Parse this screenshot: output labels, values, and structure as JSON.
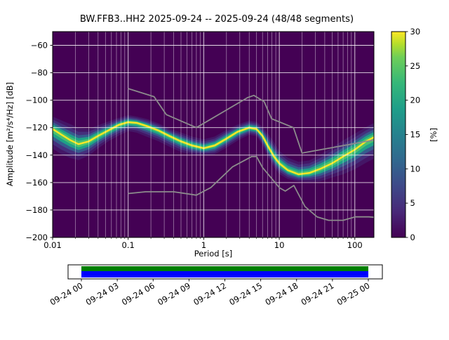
{
  "title": "BW.FFB3..HH2   2025-09-24 -- 2025-09-24  (48/48 segments)",
  "station_id": "BW.FFB3..HH2",
  "date_range": "2025-09-24 -- 2025-09-24",
  "segments": "48/48 segments",
  "axes": {
    "xlabel": "Period [s]",
    "ylabel": "Amplitude [m²/s⁴/Hz] [dB]",
    "xscale": "log",
    "xlim": [
      0.01,
      179
    ],
    "ylim": [
      -200,
      -50
    ],
    "x_ticks": [
      {
        "v": 0.01,
        "label": "0.01"
      },
      {
        "v": 0.1,
        "label": "0.1"
      },
      {
        "v": 1,
        "label": "1"
      },
      {
        "v": 10,
        "label": "10"
      },
      {
        "v": 100,
        "label": "100"
      }
    ],
    "y_ticks": [
      {
        "v": -60,
        "label": "−60"
      },
      {
        "v": -80,
        "label": "−80"
      },
      {
        "v": -100,
        "label": "−100"
      },
      {
        "v": -120,
        "label": "−120"
      },
      {
        "v": -140,
        "label": "−140"
      },
      {
        "v": -160,
        "label": "−160"
      },
      {
        "v": -180,
        "label": "−180"
      },
      {
        "v": -200,
        "label": "−200"
      }
    ]
  },
  "colorbar": {
    "label": "[%]",
    "min": 0,
    "max": 30,
    "colormap": "viridis",
    "ticks": [
      {
        "v": 0,
        "label": "0"
      },
      {
        "v": 5,
        "label": "5"
      },
      {
        "v": 10,
        "label": "10"
      },
      {
        "v": 15,
        "label": "15"
      },
      {
        "v": 20,
        "label": "20"
      },
      {
        "v": 25,
        "label": "25"
      },
      {
        "v": 30,
        "label": "30"
      }
    ],
    "gradient": [
      [
        0.0,
        "#440154"
      ],
      [
        0.125,
        "#482878"
      ],
      [
        0.25,
        "#3e4989"
      ],
      [
        0.375,
        "#31688e"
      ],
      [
        0.5,
        "#26828e"
      ],
      [
        0.625,
        "#1f9e89"
      ],
      [
        0.75,
        "#35b779"
      ],
      [
        0.875,
        "#6ece58"
      ],
      [
        0.94,
        "#b5de2b"
      ],
      [
        1.0,
        "#fde725"
      ]
    ]
  },
  "chart_data": {
    "type": "heatmap",
    "title": "BW.FFB3..HH2   2025-09-24 -- 2025-09-24  (48/48 segments)",
    "xlabel": "Period [s]",
    "ylabel": "Amplitude [m²/s⁴/Hz] [dB]",
    "xscale": "log",
    "xlim": [
      0.01,
      179
    ],
    "ylim": [
      -200,
      -50
    ],
    "x_ticks": [
      0.01,
      0.1,
      1,
      10,
      100
    ],
    "y_ticks": [
      -200,
      -180,
      -160,
      -140,
      -120,
      -100,
      -80,
      -60
    ],
    "grid": true,
    "colorbar": {
      "label": "[%]",
      "range": [
        0,
        30
      ],
      "colormap": "viridis"
    },
    "psd_distribution": {
      "description": "probability density of PSD vs period; points are [period_s, mode_dB, upper_extent_dB, lower_extent_dB]",
      "points": [
        [
          0.01,
          -121,
          -114,
          -132
        ],
        [
          0.013,
          -125,
          -117,
          -136
        ],
        [
          0.017,
          -129,
          -120,
          -139
        ],
        [
          0.022,
          -132,
          -123,
          -141
        ],
        [
          0.03,
          -130,
          -123,
          -138
        ],
        [
          0.04,
          -126,
          -120,
          -133
        ],
        [
          0.055,
          -122,
          -117,
          -128
        ],
        [
          0.075,
          -118,
          -114,
          -124
        ],
        [
          0.1,
          -116,
          -112,
          -121
        ],
        [
          0.13,
          -116.5,
          -113,
          -122
        ],
        [
          0.18,
          -119,
          -115,
          -125
        ],
        [
          0.25,
          -122,
          -118,
          -128
        ],
        [
          0.35,
          -126,
          -122,
          -132
        ],
        [
          0.5,
          -130,
          -125,
          -136
        ],
        [
          0.7,
          -133,
          -128,
          -138
        ],
        [
          1.0,
          -135,
          -130,
          -139
        ],
        [
          1.4,
          -133,
          -128,
          -138
        ],
        [
          2.0,
          -128,
          -123,
          -133
        ],
        [
          2.8,
          -123,
          -119,
          -128
        ],
        [
          4.0,
          -120,
          -116,
          -124
        ],
        [
          5.0,
          -121,
          -117,
          -125
        ],
        [
          6.0,
          -126,
          -121,
          -131
        ],
        [
          7.0,
          -133,
          -126,
          -139
        ],
        [
          8.5,
          -141,
          -133,
          -147
        ],
        [
          10.0,
          -146,
          -139,
          -152
        ],
        [
          13.0,
          -151,
          -144,
          -156
        ],
        [
          18.0,
          -154,
          -147,
          -158
        ],
        [
          25.0,
          -153,
          -146,
          -158
        ],
        [
          35.0,
          -150,
          -142,
          -157
        ],
        [
          50.0,
          -146,
          -137,
          -154
        ],
        [
          70.0,
          -141,
          -132,
          -151
        ],
        [
          100.0,
          -136,
          -127,
          -147
        ],
        [
          140.0,
          -130,
          -122,
          -142
        ],
        [
          179.0,
          -127,
          -119,
          -139
        ]
      ]
    },
    "noise_models": {
      "high": {
        "name": "high-noise-model",
        "points": [
          [
            0.1,
            -91.5
          ],
          [
            0.22,
            -97.4
          ],
          [
            0.32,
            -110.5
          ],
          [
            0.8,
            -120.0
          ],
          [
            3.8,
            -98.1
          ],
          [
            4.6,
            -96.5
          ],
          [
            6.3,
            -101.0
          ],
          [
            7.9,
            -113.5
          ],
          [
            15.4,
            -120.0
          ],
          [
            20,
            -138.5
          ],
          [
            50,
            -134.5
          ],
          [
            100,
            -131.5
          ],
          [
            179,
            -129.0
          ]
        ]
      },
      "low": {
        "name": "low-noise-model",
        "points": [
          [
            0.1,
            -168.0
          ],
          [
            0.17,
            -166.7
          ],
          [
            0.4,
            -166.7
          ],
          [
            0.8,
            -169.2
          ],
          [
            1.24,
            -163.7
          ],
          [
            2.4,
            -148.6
          ],
          [
            4.3,
            -141.1
          ],
          [
            5.0,
            -141.1
          ],
          [
            6.0,
            -149.0
          ],
          [
            10.0,
            -163.7
          ],
          [
            12.0,
            -166.2
          ],
          [
            15.6,
            -162.1
          ],
          [
            21.9,
            -177.5
          ],
          [
            31.6,
            -185.0
          ],
          [
            45.0,
            -187.5
          ],
          [
            70.0,
            -187.5
          ],
          [
            101.0,
            -185.0
          ],
          [
            154.0,
            -185.0
          ],
          [
            179.0,
            -185.3
          ]
        ]
      }
    }
  },
  "coverage": {
    "tick_labels": [
      "09-24 00",
      "09-24 03",
      "09-24 06",
      "09-24 09",
      "09-24 12",
      "09-24 15",
      "09-24 18",
      "09-24 21",
      "09-25 00"
    ],
    "bars": [
      {
        "name": "segments-coverage",
        "color": "#008000",
        "start": 0,
        "end": 1
      },
      {
        "name": "data-extent",
        "color": "#0000ff",
        "start": 0,
        "end": 1
      }
    ]
  },
  "style": {
    "background": "#440154",
    "grid_color": "#ffffff",
    "model_color": "#8c8c8c",
    "mode_color": "#fde725",
    "band_layers": [
      {
        "f": 1.3,
        "color": "#453781",
        "opacity": 0.4
      },
      {
        "f": 1.0,
        "color": "#46327e",
        "opacity": 0.9
      },
      {
        "f": 0.72,
        "color": "#365c8d",
        "opacity": 1
      },
      {
        "f": 0.48,
        "color": "#1fa187",
        "opacity": 1
      },
      {
        "f": 0.26,
        "color": "#4ac16d",
        "opacity": 1
      }
    ]
  }
}
